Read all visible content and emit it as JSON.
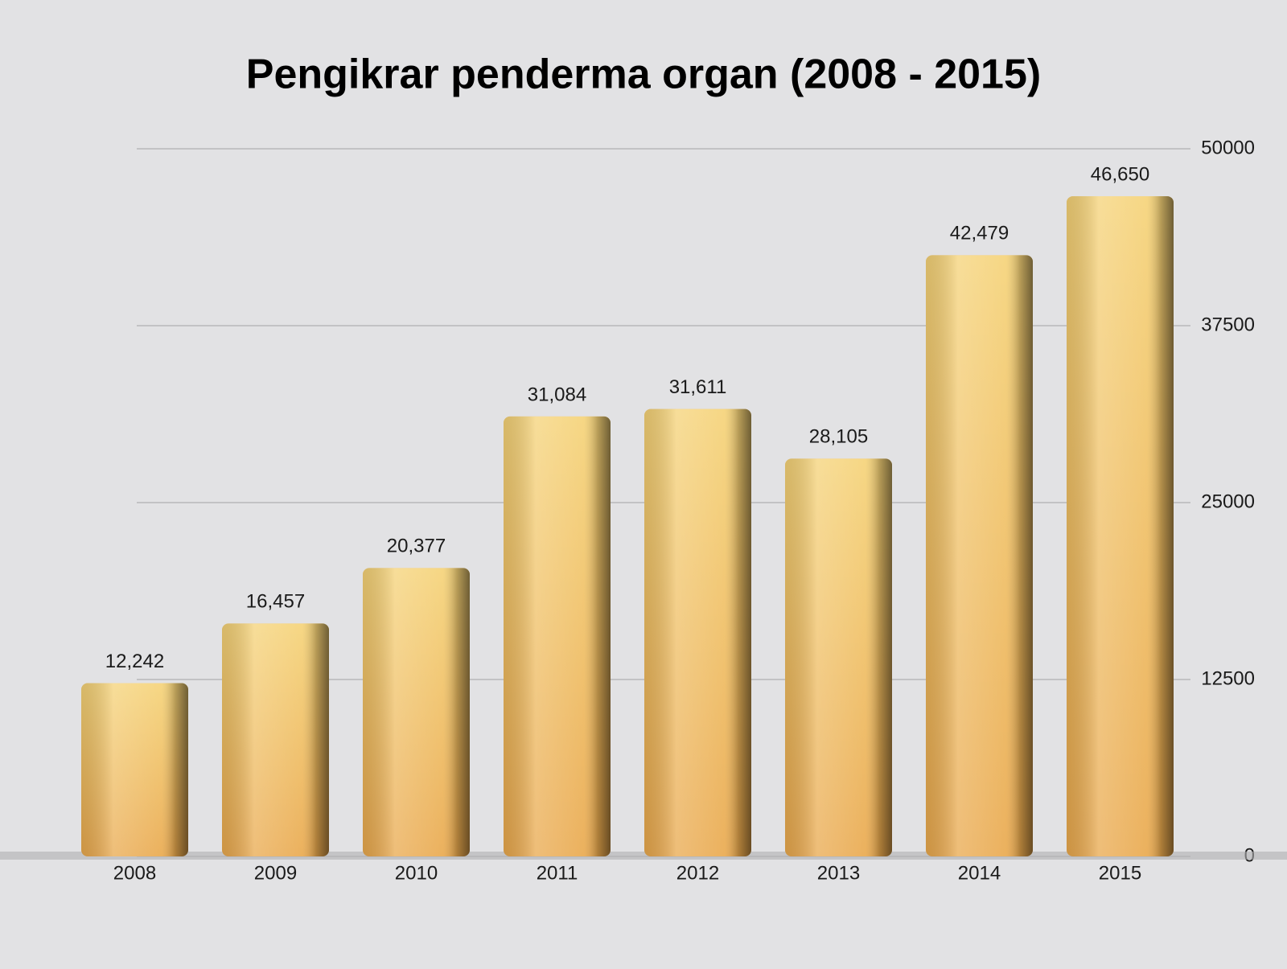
{
  "chart_data": {
    "type": "bar",
    "title": "Pengikrar penderma organ (2008 - 2015)",
    "categories": [
      "2008",
      "2009",
      "2010",
      "2011",
      "2012",
      "2013",
      "2014",
      "2015"
    ],
    "values": [
      12242,
      16457,
      20377,
      31084,
      31611,
      28105,
      42479,
      46650
    ],
    "value_labels": [
      "12,242",
      "16,457",
      "20,377",
      "31,084",
      "31,611",
      "28,105",
      "42,479",
      "46,650"
    ],
    "color": "#e9a84c",
    "ylim": [
      0,
      50000
    ],
    "yticks": [
      0,
      12500,
      25000,
      37500,
      50000
    ],
    "grid": true
  }
}
